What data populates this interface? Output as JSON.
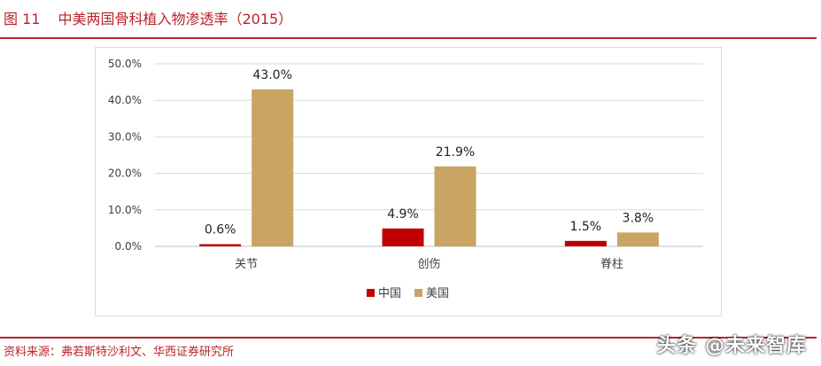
{
  "figure": {
    "label": "图 11",
    "title": "中美两国骨科植入物渗透率（2015）",
    "source": "资料来源：弗若斯特沙利文、华西证券研究所"
  },
  "watermark": "头条 @未来智库",
  "colors": {
    "accent": "#b8232a",
    "china": "#c00000",
    "usa": "#c9a463"
  },
  "chart_data": {
    "type": "bar",
    "categories": [
      "关节",
      "创伤",
      "脊柱"
    ],
    "series": [
      {
        "name": "中国",
        "values": [
          0.6,
          4.9,
          1.5
        ],
        "labels": [
          "0.6%",
          "4.9%",
          "1.5%"
        ]
      },
      {
        "name": "美国",
        "values": [
          43.0,
          21.9,
          3.8
        ],
        "labels": [
          "43.0%",
          "21.9%",
          "3.8%"
        ]
      }
    ],
    "ylim": [
      0,
      50
    ],
    "yticks": [
      "0.0%",
      "10.0%",
      "20.0%",
      "30.0%",
      "40.0%",
      "50.0%"
    ],
    "ytick_values": [
      0,
      10,
      20,
      30,
      40,
      50
    ],
    "grid": true,
    "legend_position": "bottom-center",
    "title": "",
    "xlabel": "",
    "ylabel": ""
  }
}
